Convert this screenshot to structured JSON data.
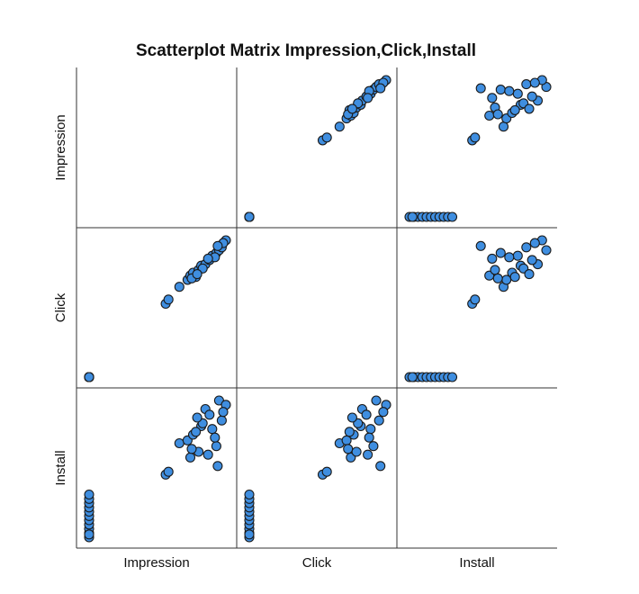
{
  "chart_data": {
    "type": "scatter",
    "title": "Scatterplot Matrix Impression,Click,Install",
    "variables": [
      "Impression",
      "Click",
      "Install"
    ],
    "axes_ticks_shown": false,
    "grid": false,
    "marker_color": "#3f8ee0",
    "data": {
      "Impression": [
        0,
        0,
        0,
        0,
        0,
        0,
        0,
        0,
        0,
        0,
        0,
        0,
        0.56,
        0.58,
        0.66,
        0.72,
        0.74,
        0.76,
        0.8,
        0.82,
        0.85,
        0.88,
        0.9,
        0.93,
        0.95,
        0.97,
        1.0,
        0.98,
        0.92,
        0.78,
        0.87,
        0.83,
        0.75,
        0.79,
        0.94
      ],
      "Click": [
        0,
        0,
        0,
        0,
        0,
        0,
        0,
        0,
        0,
        0,
        0,
        0,
        0.52,
        0.55,
        0.64,
        0.69,
        0.72,
        0.74,
        0.76,
        0.79,
        0.8,
        0.83,
        0.86,
        0.88,
        0.9,
        0.92,
        0.97,
        0.95,
        0.85,
        0.71,
        0.84,
        0.77,
        0.7,
        0.73,
        0.93
      ],
      "Install": [
        0.0,
        0.03,
        0.06,
        0.09,
        0.12,
        0.15,
        0.18,
        0.21,
        0.24,
        0.27,
        0.3,
        0.02,
        0.44,
        0.46,
        0.66,
        0.68,
        0.56,
        0.72,
        0.6,
        0.78,
        0.9,
        0.86,
        0.76,
        0.64,
        0.96,
        0.82,
        0.93,
        0.88,
        0.7,
        0.74,
        0.58,
        0.8,
        0.62,
        0.84,
        0.5
      ]
    }
  }
}
